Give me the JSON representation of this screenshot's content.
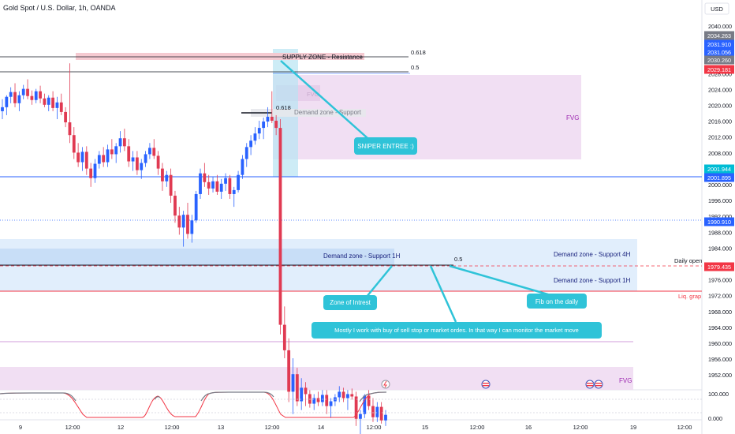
{
  "header": {
    "symbol": "Gold Spot / U.S. Dollar, 1h, OANDA",
    "currency": "USD"
  },
  "price_axis": {
    "ticks": [
      "2040.000",
      "2036.000",
      "2032.000",
      "2028.000",
      "2024.000",
      "2020.000",
      "2016.000",
      "2012.000",
      "2008.000",
      "2004.000",
      "2000.000",
      "1996.000",
      "1992.000",
      "1988.000",
      "1984.000",
      "1980.000",
      "1976.000",
      "1972.000",
      "1968.000",
      "1964.000",
      "1960.000",
      "1956.000",
      "1952.000"
    ],
    "tags": [
      {
        "text": "2034.263",
        "color": "#787b86"
      },
      {
        "text": "2031.910",
        "color": "#2962ff"
      },
      {
        "text": "2031.056",
        "color": "#2962ff"
      },
      {
        "text": "2030.260",
        "color": "#787b86"
      },
      {
        "text": "2029.181",
        "color": "#f23645"
      },
      {
        "text": "2001.944",
        "color": "#00bcd4"
      },
      {
        "text": "2001.895",
        "color": "#2962ff"
      },
      {
        "text": "1990.910",
        "color": "#2962ff"
      },
      {
        "text": "1979.435",
        "color": "#f23645"
      }
    ]
  },
  "indicator_axis": {
    "ticks": [
      "100.000",
      "0.000"
    ]
  },
  "time_axis": {
    "ticks": [
      "9",
      "12:00",
      "12",
      "12:00",
      "13",
      "12:00",
      "14",
      "12:00",
      "15",
      "12:00",
      "16",
      "12:00",
      "19",
      "12:00"
    ]
  },
  "annotations": {
    "supply_zone": "SUPPLY ZONE - Resistance",
    "fib_0618_top": "0.618",
    "fib_05_top": "0.5",
    "fvg_small": "FVG",
    "fib_0618_mid": "0.618",
    "demand_support_small": "Demand zone - Support",
    "fvg_right": "FVG",
    "sniper": "SNIPER ENTREE :)",
    "demand_1h_left": "Demand zone - Support 1H",
    "fib_05_bottom": "0.5",
    "demand_4h": "Demand zone - Support 4H",
    "daily_open": "Daily open",
    "demand_1h_right": "Demand zone - Support 1H",
    "liq_grap": "Liq. grap",
    "zone_of_interest": "Zone of Intrest",
    "fib_daily": "Fib on the daily",
    "note": "Mostly I work with buy of sell stop or market ordes. In that way I can monitor the market move",
    "fvg_bottom": "FVG"
  },
  "colors": {
    "up": "#2962ff",
    "down": "#e03a52",
    "supply": "#f4c7cf",
    "fvg": "#efdcf2",
    "demand": "#d7e8fb",
    "callout": "#2fc3d8",
    "sniper_band": "#b8e4f2"
  },
  "candles": [
    [
      2029.0,
      2030.5,
      2028.0,
      2029.5
    ],
    [
      2029.5,
      2031.0,
      2028.5,
      2030.8
    ],
    [
      2030.8,
      2032.0,
      2030.0,
      2031.4
    ],
    [
      2031.4,
      2032.5,
      2029.5,
      2030.0
    ],
    [
      2030.0,
      2031.5,
      2029.0,
      2031.0
    ],
    [
      2031.0,
      2032.3,
      2030.5,
      2031.8
    ],
    [
      2031.8,
      2033.0,
      2030.5,
      2030.9
    ],
    [
      2030.9,
      2031.6,
      2029.8,
      2030.4
    ],
    [
      2030.4,
      2031.8,
      2030.0,
      2031.5
    ],
    [
      2031.5,
      2032.2,
      2030.0,
      2030.6
    ],
    [
      2030.6,
      2031.2,
      2029.5,
      2029.8
    ],
    [
      2029.8,
      2031.0,
      2029.0,
      2030.7
    ],
    [
      2030.7,
      2031.5,
      2029.0,
      2029.4
    ],
    [
      2029.4,
      2030.8,
      2028.0,
      2030.1
    ],
    [
      2030.1,
      2031.2,
      2028.5,
      2028.9
    ],
    [
      2028.9,
      2029.5,
      2027.0,
      2027.6
    ],
    [
      2027.6,
      2035.0,
      2025.0,
      2026.0
    ],
    [
      2026.0,
      2027.0,
      2023.0,
      2023.8
    ],
    [
      2023.8,
      2025.0,
      2022.0,
      2022.6
    ],
    [
      2022.6,
      2024.5,
      2021.5,
      2023.9
    ],
    [
      2023.9,
      2024.6,
      2021.0,
      2021.8
    ],
    [
      2021.8,
      2022.5,
      2019.5,
      2020.6
    ],
    [
      2020.6,
      2023.0,
      2020.0,
      2022.4
    ],
    [
      2022.4,
      2024.0,
      2021.8,
      2023.5
    ],
    [
      2023.5,
      2024.5,
      2022.0,
      2022.6
    ],
    [
      2022.6,
      2024.8,
      2022.0,
      2024.2
    ],
    [
      2024.2,
      2025.5,
      2023.0,
      2023.6
    ],
    [
      2023.6,
      2025.0,
      2022.5,
      2024.6
    ],
    [
      2024.6,
      2026.5,
      2023.8,
      2025.6
    ],
    [
      2025.6,
      2026.8,
      2024.0,
      2024.6
    ],
    [
      2024.6,
      2025.5,
      2022.0,
      2022.7
    ],
    [
      2022.7,
      2024.0,
      2021.5,
      2023.2
    ],
    [
      2023.2,
      2024.0,
      2021.0,
      2021.6
    ],
    [
      2021.6,
      2023.0,
      2020.5,
      2022.5
    ],
    [
      2022.5,
      2024.0,
      2022.0,
      2023.6
    ],
    [
      2023.6,
      2025.0,
      2023.0,
      2024.4
    ],
    [
      2024.4,
      2025.5,
      2023.0,
      2023.4
    ],
    [
      2023.4,
      2024.0,
      2021.0,
      2021.8
    ],
    [
      2021.8,
      2022.5,
      2019.0,
      2020.2
    ],
    [
      2020.2,
      2021.5,
      2019.5,
      2021.0
    ],
    [
      2021.0,
      2021.8,
      2017.5,
      2018.4
    ],
    [
      2018.4,
      2019.0,
      2015.0,
      2015.9
    ],
    [
      2015.9,
      2017.0,
      2013.5,
      2014.4
    ],
    [
      2014.4,
      2016.5,
      2012.0,
      2016.0
    ],
    [
      2016.0,
      2017.5,
      2013.0,
      2013.6
    ],
    [
      2013.6,
      2016.0,
      2012.5,
      2015.3
    ],
    [
      2015.3,
      2019.0,
      2015.0,
      2018.6
    ],
    [
      2018.6,
      2021.8,
      2018.0,
      2021.2
    ],
    [
      2021.2,
      2022.5,
      2019.5,
      2020.1
    ],
    [
      2020.1,
      2021.0,
      2018.5,
      2019.3
    ],
    [
      2019.3,
      2020.8,
      2018.8,
      2020.2
    ],
    [
      2020.2,
      2021.0,
      2018.5,
      2018.9
    ],
    [
      2018.9,
      2020.5,
      2018.0,
      2019.9
    ],
    [
      2019.9,
      2021.2,
      2019.0,
      2020.6
    ],
    [
      2020.6,
      2021.0,
      2018.0,
      2018.6
    ],
    [
      2018.6,
      2019.5,
      2017.0,
      2019.1
    ],
    [
      2019.1,
      2021.5,
      2018.8,
      2021.0
    ],
    [
      2021.0,
      2023.5,
      2020.5,
      2023.0
    ],
    [
      2023.0,
      2025.0,
      2022.0,
      2024.5
    ],
    [
      2024.5,
      2026.0,
      2023.5,
      2025.3
    ],
    [
      2025.3,
      2027.0,
      2024.8,
      2026.2
    ],
    [
      2026.2,
      2027.8,
      2025.5,
      2026.9
    ],
    [
      2026.9,
      2028.2,
      2025.5,
      2027.7
    ],
    [
      2027.7,
      2029.5,
      2027.0,
      2028.3
    ],
    [
      2028.3,
      2031.5,
      2027.5,
      2027.8
    ],
    [
      2027.8,
      2028.5,
      2026.0,
      2026.9
    ],
    [
      2026.9,
      2028.0,
      2001.0,
      2002.2
    ],
    [
      2002.2,
      2004.5,
      1998.0,
      1999.0
    ],
    [
      1999.0,
      2000.5,
      1992.5,
      1993.8
    ],
    [
      1993.8,
      1998.0,
      1991.0,
      1996.0
    ],
    [
      1996.0,
      1996.8,
      1992.0,
      1992.6
    ],
    [
      1992.6,
      1995.5,
      1991.5,
      1994.3
    ],
    [
      1994.3,
      1995.0,
      1992.0,
      1993.5
    ],
    [
      1993.5,
      1994.0,
      1991.8,
      1992.3
    ],
    [
      1992.3,
      1993.5,
      1991.5,
      1993.0
    ],
    [
      1993.0,
      1993.8,
      1992.0,
      1992.5
    ],
    [
      1992.5,
      1994.0,
      1992.0,
      1993.4
    ],
    [
      1993.4,
      1994.0,
      1991.0,
      1992.0
    ],
    [
      1992.0,
      1993.0,
      1990.5,
      1992.6
    ],
    [
      1992.6,
      1993.5,
      1992.0,
      1993.1
    ],
    [
      1993.1,
      1994.5,
      1992.5,
      1993.8
    ],
    [
      1993.8,
      1994.3,
      1992.5,
      1993.0
    ],
    [
      1993.0,
      1994.0,
      1991.5,
      1993.5
    ],
    [
      1993.5,
      1994.2,
      1992.8,
      1993.2
    ],
    [
      1993.2,
      1993.8,
      1989.5,
      1990.4
    ],
    [
      1990.4,
      1991.5,
      1987.0,
      1991.0
    ],
    [
      1991.0,
      1993.5,
      1990.5,
      1993.3
    ],
    [
      1993.3,
      1994.0,
      1991.5,
      1992.0
    ],
    [
      1992.0,
      1993.0,
      1990.0,
      1990.6
    ],
    [
      1990.6,
      1992.5,
      1990.0,
      1991.9
    ],
    [
      1991.9,
      1992.5,
      1989.8,
      1990.2
    ],
    [
      1990.2,
      1991.5,
      1989.5,
      1990.9
    ]
  ]
}
